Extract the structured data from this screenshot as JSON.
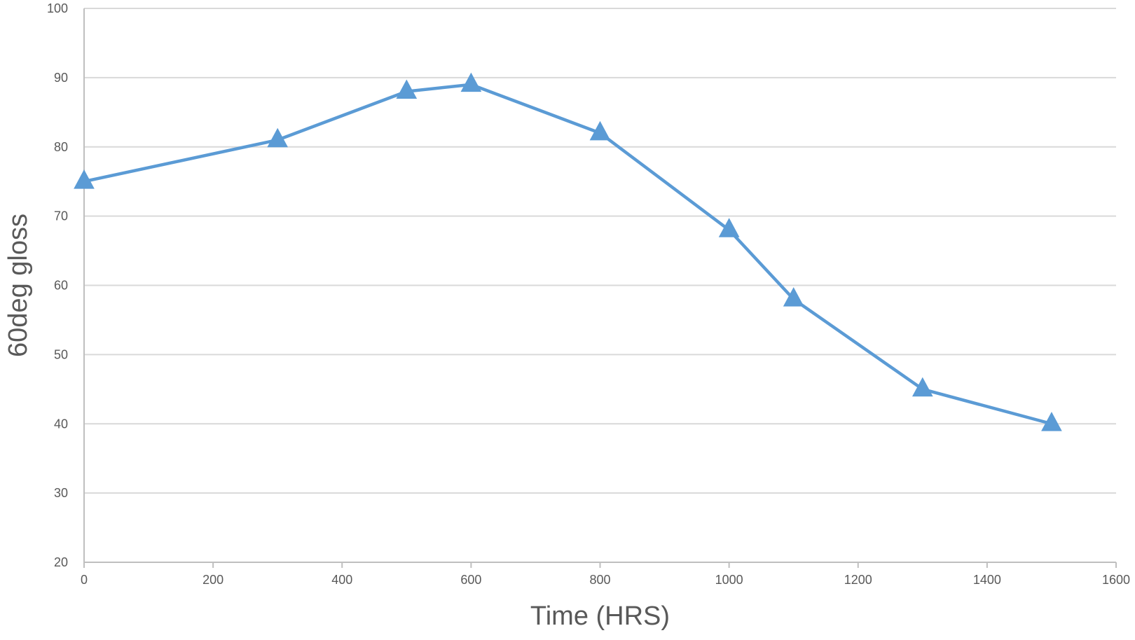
{
  "colors": {
    "series": "#5b9bd5",
    "grid": "#d9d9d9",
    "axis": "#bfbfbf",
    "text": "#595959",
    "background": "#ffffff"
  },
  "chart_data": {
    "type": "line",
    "title": "",
    "xlabel": "Time (HRS)",
    "ylabel": "60deg gloss",
    "xlim": [
      0,
      1600
    ],
    "ylim": [
      20,
      100
    ],
    "xticks": [
      0,
      200,
      400,
      600,
      800,
      1000,
      1200,
      1400,
      1600
    ],
    "yticks": [
      20,
      30,
      40,
      50,
      60,
      70,
      80,
      90,
      100
    ],
    "grid": true,
    "grid_axis": "y",
    "legend": "none",
    "marker": "triangle",
    "series": [
      {
        "x": [
          0,
          300,
          500,
          600,
          800,
          1000,
          1100,
          1300,
          1500
        ],
        "values": [
          75,
          81,
          88,
          89,
          82,
          68,
          58,
          45,
          40
        ]
      }
    ]
  }
}
